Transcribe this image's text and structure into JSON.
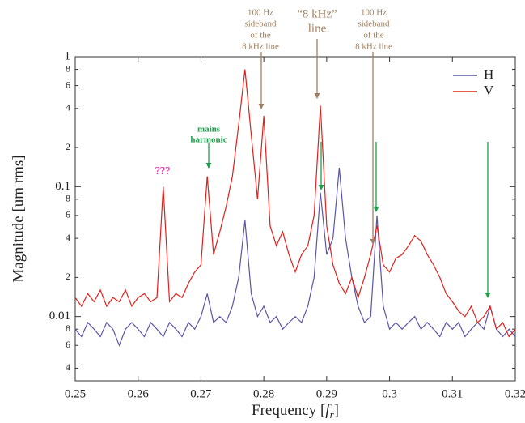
{
  "chart_data": {
    "type": "line",
    "xlabel": [
      "Frequency  [",
      "f",
      "r",
      "]"
    ],
    "ylabel": "Magnitude  [um rms]",
    "log_y": true,
    "legend": "upper right",
    "xlim": [
      0.25,
      0.32
    ],
    "xticks": [
      0.25,
      0.26,
      0.27,
      0.28,
      0.29,
      0.3,
      0.31,
      0.32
    ],
    "ylim": [
      0.0032,
      1
    ],
    "yticks": [
      1,
      {
        "value": 0.8,
        "label": "8"
      },
      {
        "value": 0.6,
        "label": "6"
      },
      {
        "value": 0.4,
        "label": "4"
      },
      {
        "value": 0.2,
        "label": "2"
      },
      0.1,
      {
        "value": 0.08,
        "label": "8"
      },
      {
        "value": 0.06,
        "label": "6"
      },
      {
        "value": 0.04,
        "label": "4"
      },
      {
        "value": 0.02,
        "label": "2"
      },
      0.01,
      {
        "value": 0.008,
        "label": "8"
      },
      {
        "value": 0.006,
        "label": "6"
      },
      {
        "value": 0.004,
        "label": "4"
      }
    ],
    "x": [
      0.25,
      0.251,
      0.252,
      0.253,
      0.254,
      0.255,
      0.256,
      0.257,
      0.258,
      0.259,
      0.26,
      0.261,
      0.262,
      0.263,
      0.264,
      0.265,
      0.266,
      0.267,
      0.268,
      0.269,
      0.27,
      0.271,
      0.272,
      0.273,
      0.274,
      0.275,
      0.276,
      0.277,
      0.278,
      0.279,
      0.28,
      0.281,
      0.282,
      0.283,
      0.284,
      0.285,
      0.286,
      0.287,
      0.288,
      0.289,
      0.29,
      0.291,
      0.292,
      0.293,
      0.294,
      0.295,
      0.296,
      0.297,
      0.298,
      0.299,
      0.3,
      0.301,
      0.302,
      0.303,
      0.304,
      0.305,
      0.306,
      0.307,
      0.308,
      0.309,
      0.31,
      0.311,
      0.312,
      0.313,
      0.314,
      0.315,
      0.316,
      0.317,
      0.318,
      0.319,
      0.32
    ],
    "series": [
      {
        "name": "H",
        "color": "#5a55a8",
        "values": [
          0.008,
          0.007,
          0.009,
          0.008,
          0.007,
          0.009,
          0.008,
          0.006,
          0.008,
          0.009,
          0.008,
          0.007,
          0.009,
          0.008,
          0.007,
          0.009,
          0.008,
          0.007,
          0.009,
          0.008,
          0.01,
          0.015,
          0.009,
          0.01,
          0.009,
          0.012,
          0.02,
          0.055,
          0.015,
          0.01,
          0.012,
          0.009,
          0.01,
          0.008,
          0.009,
          0.01,
          0.009,
          0.012,
          0.02,
          0.09,
          0.03,
          0.04,
          0.14,
          0.04,
          0.02,
          0.012,
          0.009,
          0.01,
          0.06,
          0.012,
          0.008,
          0.009,
          0.008,
          0.009,
          0.01,
          0.008,
          0.009,
          0.008,
          0.007,
          0.009,
          0.008,
          0.009,
          0.007,
          0.008,
          0.009,
          0.008,
          0.012,
          0.008,
          0.007,
          0.008,
          0.007
        ]
      },
      {
        "name": "V",
        "color": "#e0201b",
        "values": [
          0.014,
          0.012,
          0.015,
          0.013,
          0.016,
          0.012,
          0.014,
          0.013,
          0.016,
          0.012,
          0.014,
          0.015,
          0.013,
          0.014,
          0.1,
          0.013,
          0.015,
          0.014,
          0.018,
          0.022,
          0.025,
          0.12,
          0.03,
          0.045,
          0.07,
          0.12,
          0.3,
          0.8,
          0.25,
          0.08,
          0.35,
          0.05,
          0.035,
          0.045,
          0.03,
          0.022,
          0.03,
          0.035,
          0.06,
          0.42,
          0.05,
          0.025,
          0.018,
          0.015,
          0.02,
          0.014,
          0.02,
          0.03,
          0.05,
          0.025,
          0.022,
          0.028,
          0.03,
          0.035,
          0.042,
          0.038,
          0.03,
          0.025,
          0.02,
          0.015,
          0.013,
          0.011,
          0.01,
          0.012,
          0.009,
          0.01,
          0.012,
          0.008,
          0.009,
          0.007,
          0.008
        ]
      }
    ],
    "annotations": [
      {
        "lines": [
          "???"
        ],
        "color": "#e0179a"
      },
      {
        "lines": [
          "mains",
          "harmonic"
        ],
        "color": "#1aa04a"
      },
      {
        "lines": [
          "100 Hz",
          "sideband",
          "of the",
          "8 kHz line"
        ],
        "color": "#a08060"
      },
      {
        "lines": [
          "“8 kHz”",
          "line"
        ],
        "color": "#a08060"
      },
      {
        "lines": [
          "100 Hz",
          "sideband",
          "of the",
          "8 kHz line"
        ],
        "color": "#a08060"
      }
    ]
  }
}
